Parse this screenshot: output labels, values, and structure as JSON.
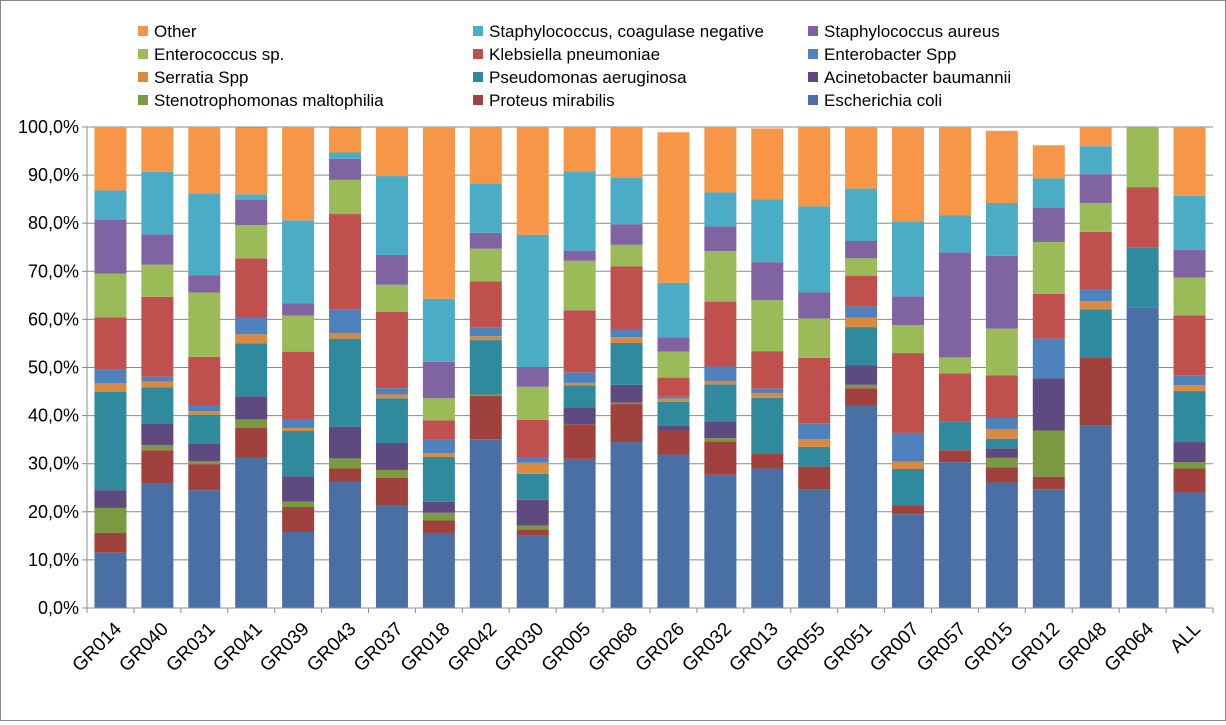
{
  "chart_data": {
    "type": "bar",
    "stacked": true,
    "percent": true,
    "categories": [
      "GR014",
      "GR040",
      "GR031",
      "GR041",
      "GR039",
      "GR043",
      "GR037",
      "GR018",
      "GR042",
      "GR030",
      "GR005",
      "GR068",
      "GR026",
      "GR032",
      "GR013",
      "GR055",
      "GR051",
      "GR007",
      "GR057",
      "GR015",
      "GR012",
      "GR048",
      "GR064",
      "ALL"
    ],
    "ylim": [
      0,
      100
    ],
    "yticks": [
      0,
      10,
      20,
      30,
      40,
      50,
      60,
      70,
      80,
      90,
      100
    ],
    "ytick_labels": [
      "0,0%",
      "10,0%",
      "20,0%",
      "30,0%",
      "40,0%",
      "50,0%",
      "60,0%",
      "70,0%",
      "80,0%",
      "90,0%",
      "100,0%"
    ],
    "grid": true,
    "legend_position": "top",
    "series": [
      {
        "name": "Escherichia coli",
        "color": "#4A6FA5",
        "values": [
          11.5,
          25.8,
          24.5,
          31.2,
          15.8,
          26.2,
          21.3,
          15.6,
          35.1,
          15.0,
          31.0,
          34.5,
          31.9,
          27.7,
          29.0,
          24.6,
          42.1,
          19.5,
          30.3,
          26.1,
          24.7,
          37.9,
          62.5,
          24.0
        ]
      },
      {
        "name": "Proteus mirabilis",
        "color": "#A0413E",
        "values": [
          4.1,
          7.0,
          5.4,
          6.3,
          5.2,
          2.8,
          5.8,
          2.6,
          9.0,
          1.3,
          7.2,
          7.9,
          5.0,
          6.9,
          3.1,
          4.8,
          3.6,
          1.8,
          2.5,
          3.1,
          2.6,
          14.2,
          0,
          5.0
        ]
      },
      {
        "name": "Stenotrophomonas maltophilia",
        "color": "#7A9A42",
        "values": [
          5.2,
          1.1,
          0.6,
          1.7,
          1.1,
          2.1,
          1.6,
          1.6,
          0.3,
          0.8,
          0,
          0.3,
          0,
          0.7,
          0,
          0,
          0.7,
          0,
          0,
          2.0,
          9.6,
          0,
          0,
          1.3
        ]
      },
      {
        "name": "Acinetobacter baumannii",
        "color": "#5E4A7E",
        "values": [
          3.7,
          4.5,
          3.6,
          4.8,
          5.3,
          6.6,
          5.6,
          2.3,
          0,
          5.4,
          3.5,
          3.7,
          1.1,
          3.5,
          0,
          0,
          4.1,
          0,
          0,
          2.0,
          10.8,
          0,
          0,
          4.2
        ]
      },
      {
        "name": "Pseudomonas aeruginosa",
        "color": "#2F8A9E",
        "values": [
          20.4,
          7.5,
          6.1,
          11.0,
          9.4,
          18.3,
          9.3,
          9.3,
          11.3,
          5.4,
          4.6,
          8.7,
          4.9,
          7.7,
          11.6,
          4.1,
          7.9,
          7.6,
          6.0,
          2.0,
          0,
          10.0,
          12.5,
          10.6
        ]
      },
      {
        "name": "Serratia Spp",
        "color": "#D88A40",
        "values": [
          1.8,
          1.2,
          0.7,
          1.9,
          0.6,
          1.1,
          0.8,
          0.8,
          0.8,
          2.3,
          0.5,
          1.2,
          0.6,
          0.7,
          1.0,
          1.6,
          2.0,
          1.5,
          0,
          2.0,
          0,
          1.7,
          0,
          1.2
        ]
      },
      {
        "name": "Enterobacter Spp",
        "color": "#4F81BD",
        "values": [
          2.9,
          1.0,
          1.1,
          3.4,
          1.8,
          4.9,
          1.3,
          2.8,
          1.9,
          1.0,
          2.2,
          1.6,
          0.4,
          3.0,
          0.9,
          3.3,
          2.3,
          6.0,
          0,
          2.3,
          8.3,
          2.4,
          0,
          2.1
        ]
      },
      {
        "name": "Klebsiella pneumoniae",
        "color": "#C0504D",
        "values": [
          10.8,
          16.6,
          10.2,
          12.4,
          14.1,
          19.9,
          15.9,
          4.0,
          9.5,
          7.9,
          12.9,
          13.1,
          4.0,
          13.5,
          7.8,
          13.6,
          6.4,
          16.6,
          10.0,
          8.9,
          9.3,
          12.0,
          12.5,
          12.4
        ]
      },
      {
        "name": "Enterococcus sp.",
        "color": "#9BBB59",
        "values": [
          9.1,
          6.7,
          13.4,
          6.9,
          7.5,
          7.1,
          5.6,
          4.6,
          6.8,
          6.9,
          10.3,
          4.5,
          5.4,
          10.5,
          10.6,
          8.2,
          3.6,
          5.8,
          3.3,
          9.7,
          10.8,
          6.0,
          12.5,
          7.9
        ]
      },
      {
        "name": "Staphylococcus aureus",
        "color": "#8064A2",
        "values": [
          11.3,
          6.3,
          3.6,
          5.3,
          2.5,
          4.4,
          6.2,
          7.6,
          3.3,
          4.1,
          2.1,
          4.3,
          3.0,
          5.1,
          7.9,
          5.4,
          3.6,
          6.0,
          21.8,
          15.1,
          7.2,
          6.0,
          0,
          5.8
        ]
      },
      {
        "name": "Staphylococcus, coagulase negative",
        "color": "#4BACC6",
        "values": [
          6.0,
          13.0,
          17.0,
          1.1,
          17.3,
          1.3,
          16.4,
          13.1,
          10.3,
          27.5,
          16.5,
          9.6,
          11.3,
          7.1,
          13.1,
          17.9,
          10.9,
          15.6,
          7.7,
          11.0,
          6.0,
          5.8,
          0,
          11.2
        ]
      },
      {
        "name": "Other",
        "color": "#F79646",
        "values": [
          13.2,
          9.3,
          13.8,
          13.9,
          19.4,
          5.2,
          10.2,
          35.7,
          11.7,
          22.4,
          9.2,
          10.6,
          31.3,
          13.6,
          14.7,
          16.5,
          12.8,
          19.6,
          18.4,
          15.0,
          6.9,
          4.0,
          0,
          14.3
        ]
      }
    ]
  },
  "legend": {
    "columns": [
      [
        "Other",
        "Enterococcus sp.",
        "Serratia Spp",
        "Stenotrophomonas maltophilia"
      ],
      [
        "Staphylococcus, coagulase negative",
        "Klebsiella pneumoniae",
        "Pseudomonas aeruginosa",
        "Proteus mirabilis"
      ],
      [
        "Staphylococcus aureus",
        "Enterobacter Spp",
        "Acinetobacter baumannii",
        "Escherichia coli"
      ]
    ]
  }
}
